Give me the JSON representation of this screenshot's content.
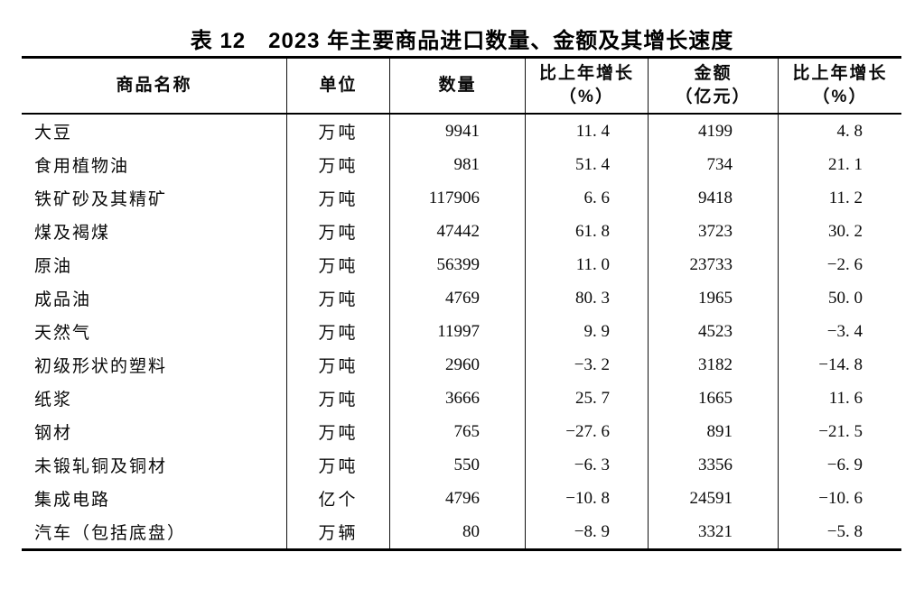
{
  "title": "表 12　2023 年主要商品进口数量、金额及其增长速度",
  "table": {
    "headers": {
      "product": "商品名称",
      "unit": "单位",
      "quantity": "数量",
      "quantity_growth": [
        "比上年增长",
        "（%）"
      ],
      "amount": [
        "金额",
        "（亿元）"
      ],
      "amount_growth": [
        "比上年增长",
        "（%）"
      ]
    },
    "rows": [
      {
        "product": "大豆",
        "unit": "万吨",
        "quantity": "9941",
        "quantity_growth": "11. 4",
        "amount": "4199",
        "amount_growth": "4. 8"
      },
      {
        "product": "食用植物油",
        "unit": "万吨",
        "quantity": "981",
        "quantity_growth": "51. 4",
        "amount": "734",
        "amount_growth": "21. 1"
      },
      {
        "product": "铁矿砂及其精矿",
        "unit": "万吨",
        "quantity": "117906",
        "quantity_growth": "6. 6",
        "amount": "9418",
        "amount_growth": "11. 2"
      },
      {
        "product": "煤及褐煤",
        "unit": "万吨",
        "quantity": "47442",
        "quantity_growth": "61. 8",
        "amount": "3723",
        "amount_growth": "30. 2"
      },
      {
        "product": "原油",
        "unit": "万吨",
        "quantity": "56399",
        "quantity_growth": "11. 0",
        "amount": "23733",
        "amount_growth": "−2. 6"
      },
      {
        "product": "成品油",
        "unit": "万吨",
        "quantity": "4769",
        "quantity_growth": "80. 3",
        "amount": "1965",
        "amount_growth": "50. 0"
      },
      {
        "product": "天然气",
        "unit": "万吨",
        "quantity": "11997",
        "quantity_growth": "9. 9",
        "amount": "4523",
        "amount_growth": "−3. 4"
      },
      {
        "product": "初级形状的塑料",
        "unit": "万吨",
        "quantity": "2960",
        "quantity_growth": "−3. 2",
        "amount": "3182",
        "amount_growth": "−14. 8"
      },
      {
        "product": "纸浆",
        "unit": "万吨",
        "quantity": "3666",
        "quantity_growth": "25. 7",
        "amount": "1665",
        "amount_growth": "11. 6"
      },
      {
        "product": "钢材",
        "unit": "万吨",
        "quantity": "765",
        "quantity_growth": "−27. 6",
        "amount": "891",
        "amount_growth": "−21. 5"
      },
      {
        "product": "未锻轧铜及铜材",
        "unit": "万吨",
        "quantity": "550",
        "quantity_growth": "−6. 3",
        "amount": "3356",
        "amount_growth": "−6. 9"
      },
      {
        "product": "集成电路",
        "unit": "亿个",
        "quantity": "4796",
        "quantity_growth": "−10. 8",
        "amount": "24591",
        "amount_growth": "−10. 6"
      },
      {
        "product": "汽车（包括底盘）",
        "unit": "万辆",
        "quantity": "80",
        "quantity_growth": "−8. 9",
        "amount": "3321",
        "amount_growth": "−5. 8"
      }
    ]
  },
  "chart_data": {
    "type": "table",
    "title": "表12 2023年主要商品进口数量、金额及其增长速度",
    "columns": [
      "商品名称",
      "单位",
      "数量",
      "比上年增长（%）",
      "金额（亿元）",
      "比上年增长（%）"
    ],
    "rows": [
      [
        "大豆",
        "万吨",
        9941,
        11.4,
        4199,
        4.8
      ],
      [
        "食用植物油",
        "万吨",
        981,
        51.4,
        734,
        21.1
      ],
      [
        "铁矿砂及其精矿",
        "万吨",
        117906,
        6.6,
        9418,
        11.2
      ],
      [
        "煤及褐煤",
        "万吨",
        47442,
        61.8,
        3723,
        30.2
      ],
      [
        "原油",
        "万吨",
        56399,
        11.0,
        23733,
        -2.6
      ],
      [
        "成品油",
        "万吨",
        4769,
        80.3,
        1965,
        50.0
      ],
      [
        "天然气",
        "万吨",
        11997,
        9.9,
        4523,
        -3.4
      ],
      [
        "初级形状的塑料",
        "万吨",
        2960,
        -3.2,
        3182,
        -14.8
      ],
      [
        "纸浆",
        "万吨",
        3666,
        25.7,
        1665,
        11.6
      ],
      [
        "钢材",
        "万吨",
        765,
        -27.6,
        891,
        -21.5
      ],
      [
        "未锻轧铜及铜材",
        "万吨",
        550,
        -6.3,
        3356,
        -6.9
      ],
      [
        "集成电路",
        "亿个",
        4796,
        -10.8,
        24591,
        -10.6
      ],
      [
        "汽车（包括底盘）",
        "万辆",
        80,
        -8.9,
        3321,
        -5.8
      ]
    ]
  }
}
